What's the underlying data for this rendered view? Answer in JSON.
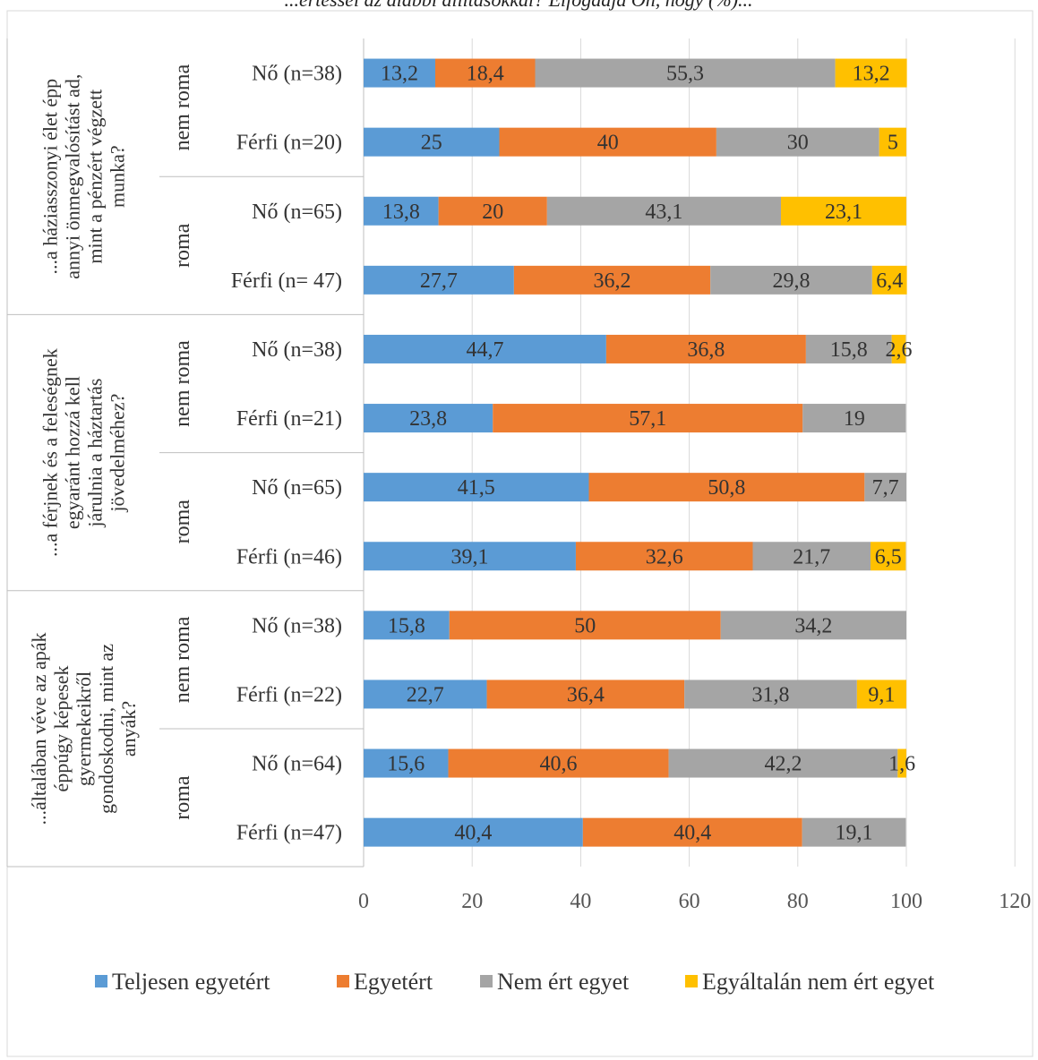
{
  "header_fragment": "...értéssel az alábbi állításokkal? Elfogadja Ön, hogy (%)...",
  "chart_data": {
    "type": "bar",
    "orientation": "horizontal",
    "stacked": true,
    "xlim": [
      0,
      120
    ],
    "xticks": [
      0,
      20,
      40,
      60,
      80,
      100,
      120
    ],
    "grid": true,
    "legend_position": "bottom",
    "series": [
      {
        "name": "Teljesen egyetért",
        "color": "#5b9bd5"
      },
      {
        "name": "Egyetért",
        "color": "#ed7d31"
      },
      {
        "name": "Nem ért egyet",
        "color": "#a5a5a5"
      },
      {
        "name": "Egyáltalán nem ért egyet",
        "color": "#ffc000"
      }
    ],
    "questions": [
      {
        "label_lines": [
          "...a háziasszonyi élet épp",
          "annyi önmegvalósítást ad,",
          "mint a pénzért végzett",
          "munka?"
        ],
        "groups": [
          {
            "name": "nem roma",
            "rows": [
              {
                "label": "Nő (n=38)",
                "values": [
                  13.2,
                  18.4,
                  55.3,
                  13.2
                ],
                "labels": [
                  "13,2",
                  "18,4",
                  "55,3",
                  "13,2"
                ]
              },
              {
                "label": "Férfi (n=20)",
                "values": [
                  25,
                  40,
                  30,
                  5
                ],
                "labels": [
                  "25",
                  "40",
                  "30",
                  "5"
                ]
              }
            ]
          },
          {
            "name": "roma",
            "rows": [
              {
                "label": "Nő (n=65)",
                "values": [
                  13.8,
                  20,
                  43.1,
                  23.1
                ],
                "labels": [
                  "13,8",
                  "20",
                  "43,1",
                  "23,1"
                ]
              },
              {
                "label": "Férfi (n= 47)",
                "values": [
                  27.7,
                  36.2,
                  29.8,
                  6.4
                ],
                "labels": [
                  "27,7",
                  "36,2",
                  "29,8",
                  "6,4"
                ]
              }
            ]
          }
        ]
      },
      {
        "label_lines": [
          "...a férjnek és a feleségnek",
          "egyaránt hozzá kell",
          "járulnia a háztartás",
          "jövedelméhez?"
        ],
        "groups": [
          {
            "name": "nem roma",
            "rows": [
              {
                "label": "Nő (n=38)",
                "values": [
                  44.7,
                  36.8,
                  15.8,
                  2.6
                ],
                "labels": [
                  "44,7",
                  "36,8",
                  "15,8",
                  "2,6"
                ]
              },
              {
                "label": "Férfi (n=21)",
                "values": [
                  23.8,
                  57.1,
                  19,
                  0
                ],
                "labels": [
                  "23,8",
                  "57,1",
                  "19",
                  ""
                ]
              }
            ]
          },
          {
            "name": "roma",
            "rows": [
              {
                "label": "Nő (n=65)",
                "values": [
                  41.5,
                  50.8,
                  7.7,
                  0
                ],
                "labels": [
                  "41,5",
                  "50,8",
                  "7,7",
                  ""
                ]
              },
              {
                "label": "Férfi (n=46)",
                "values": [
                  39.1,
                  32.6,
                  21.7,
                  6.5
                ],
                "labels": [
                  "39,1",
                  "32,6",
                  "21,7",
                  "6,5"
                ]
              }
            ]
          }
        ]
      },
      {
        "label_lines": [
          "...általában véve az apák",
          "éppúgy képesek",
          "gyermekeikről",
          "gondoskodni, mint az",
          "anyák?"
        ],
        "groups": [
          {
            "name": "nem roma",
            "rows": [
              {
                "label": "Nő (n=38)",
                "values": [
                  15.8,
                  50,
                  34.2,
                  0
                ],
                "labels": [
                  "15,8",
                  "50",
                  "34,2",
                  ""
                ]
              },
              {
                "label": "Férfi (n=22)",
                "values": [
                  22.7,
                  36.4,
                  31.8,
                  9.1
                ],
                "labels": [
                  "22,7",
                  "36,4",
                  "31,8",
                  "9,1"
                ]
              }
            ]
          },
          {
            "name": "roma",
            "rows": [
              {
                "label": "Nő (n=64)",
                "values": [
                  15.6,
                  40.6,
                  42.2,
                  1.6
                ],
                "labels": [
                  "15,6",
                  "40,6",
                  "42,2",
                  "1,6"
                ]
              },
              {
                "label": "Férfi (n=47)",
                "values": [
                  40.4,
                  40.4,
                  19.1,
                  0
                ],
                "labels": [
                  "40,4",
                  "40,4",
                  "19,1",
                  ""
                ]
              }
            ]
          }
        ]
      }
    ]
  }
}
